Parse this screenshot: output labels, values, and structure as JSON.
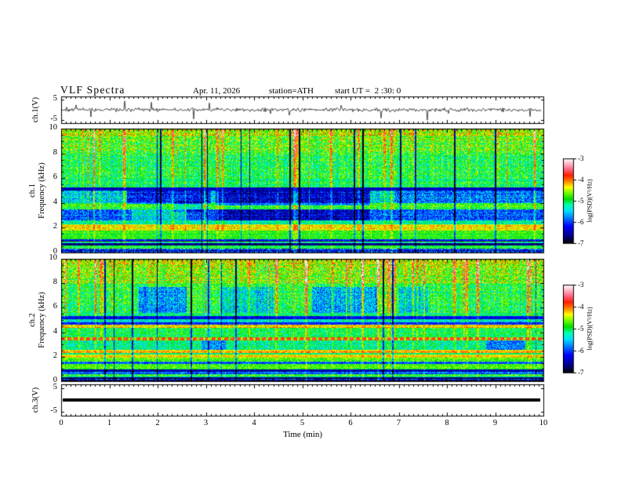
{
  "title": {
    "main": "VLF Spectra",
    "date": "Apr. 11, 2026",
    "station": "station=ATH",
    "start_ut": "start UT =  2 :30: 0"
  },
  "x_axis": {
    "label": "Time (min)",
    "min": 0,
    "max": 10,
    "tick_values": [
      0,
      1,
      2,
      3,
      4,
      5,
      6,
      7,
      8,
      9,
      10
    ],
    "tick_labels": [
      "0",
      "1",
      "2",
      "3",
      "4",
      "5",
      "6",
      "7",
      "8",
      "9",
      "10"
    ],
    "minor_step": 0.1
  },
  "colorbar": {
    "label": "log(PSD)(V²/Hz)",
    "min": -7,
    "max": -3,
    "tick_values": [
      -3,
      -4,
      -5,
      -6,
      -7
    ],
    "tick_labels": [
      "-3",
      "-4",
      "-5",
      "-6",
      "-7"
    ],
    "stops": [
      [
        0,
        "#000000"
      ],
      [
        0.08,
        "#000080"
      ],
      [
        0.2,
        "#0000ff"
      ],
      [
        0.3,
        "#0080ff"
      ],
      [
        0.38,
        "#00e0ff"
      ],
      [
        0.45,
        "#00ffb0"
      ],
      [
        0.52,
        "#00dd00"
      ],
      [
        0.6,
        "#80ff00"
      ],
      [
        0.66,
        "#ffff00"
      ],
      [
        0.73,
        "#ff8000"
      ],
      [
        0.8,
        "#ff2000"
      ],
      [
        0.87,
        "#ff6080"
      ],
      [
        0.93,
        "#ffb0c0"
      ],
      [
        1,
        "#ffffff"
      ]
    ]
  },
  "chart_data": [
    {
      "type": "line",
      "name": "ch1-waveform",
      "ylabel": "ch.1(V)",
      "ylim": [
        -6.5,
        6.5
      ],
      "ytick_values": [
        5,
        -5
      ],
      "ytick_labels": [
        "5",
        "-5"
      ],
      "line_color": "#000000",
      "noise_amp": 1.1,
      "spike_rate": 0.04,
      "spike_amp": [
        1.5,
        5.0
      ],
      "seed": 42
    },
    {
      "type": "heatmap",
      "name": "ch1-spectrogram",
      "ylabel_lines": [
        "ch.1",
        "Frequency (kHz)"
      ],
      "ylim": [
        0,
        10
      ],
      "ytick_values": [
        10,
        8,
        6,
        4,
        2,
        0
      ],
      "ytick_labels": [
        "10",
        "8",
        "6",
        "4",
        "2",
        "0"
      ],
      "value_units": "log(PSD)(V²/Hz)",
      "seed": 21,
      "stripe_rate": 0.06,
      "dark_rate": 0.025,
      "bands": [
        {
          "f": [
            9.4,
            10.01
          ],
          "level": -4.5,
          "noise": 0.55,
          "stripe": 1.0
        },
        {
          "f": [
            8.0,
            9.4
          ],
          "level": -4.75,
          "noise": 0.55,
          "stripe": 1.0
        },
        {
          "f": [
            6.0,
            8.0
          ],
          "level": -5.0,
          "noise": 0.5,
          "stripe": 0.9
        },
        {
          "f": [
            5.25,
            6.0
          ],
          "level": -5.05,
          "noise": 0.45,
          "stripe": 0.8
        },
        {
          "f": [
            5.0,
            5.25
          ],
          "level": -6.5,
          "noise": 0.35,
          "stripe": 0.25
        },
        {
          "f": [
            4.0,
            5.0
          ],
          "level": -5.45,
          "noise": 0.5,
          "stripe": 0.7
        },
        {
          "f": [
            3.45,
            4.0
          ],
          "level": -4.85,
          "noise": 0.4,
          "stripe": 0.6
        },
        {
          "f": [
            2.6,
            3.45
          ],
          "level": -6.0,
          "noise": 0.5,
          "stripe": 0.5
        },
        {
          "f": [
            2.25,
            2.6
          ],
          "level": -5.2,
          "noise": 0.4,
          "stripe": 0.45
        },
        {
          "f": [
            1.75,
            2.25
          ],
          "level": -4.35,
          "noise": 0.3,
          "stripe": 0.3
        },
        {
          "f": [
            1.05,
            1.75
          ],
          "level": -4.8,
          "noise": 0.3,
          "stripe": 0.3
        },
        {
          "f": [
            0.9,
            1.05
          ],
          "level": -6.2,
          "noise": 0.4,
          "stripe": 0.2,
          "rowNoise": 0.5
        },
        {
          "f": [
            0.75,
            0.9
          ],
          "level": -5.3,
          "noise": 0.4,
          "stripe": 0.2,
          "rowNoise": 0.5
        },
        {
          "f": [
            0.55,
            0.75
          ],
          "level": -6.5,
          "noise": 0.45,
          "stripe": 0.2,
          "rowNoise": 0.5
        },
        {
          "f": [
            0.3,
            0.55
          ],
          "level": -5.0,
          "noise": 0.4,
          "stripe": 0.25,
          "rowNoise": 0.4
        },
        {
          "f": [
            0,
            0.3
          ],
          "level": -6.3,
          "noise": 0.6,
          "stripe": 0.3,
          "rowNoise": 0.5
        }
      ],
      "features": [
        {
          "t": [
            1.35,
            3.1
          ],
          "f": [
            3.9,
            5.0
          ],
          "dlevel": -0.7
        },
        {
          "t": [
            3.2,
            6.4
          ],
          "f": [
            3.8,
            5.0
          ],
          "dlevel": -0.9
        },
        {
          "t": [
            3.2,
            6.4
          ],
          "f": [
            2.6,
            3.45
          ],
          "dlevel": -0.45
        },
        {
          "t": [
            1.45,
            2.6
          ],
          "f": [
            2.6,
            3.45
          ],
          "dlevel": 0.55
        },
        {
          "t": [
            2.3,
            2.9
          ],
          "f": [
            3.3,
            4.1
          ],
          "dlevel": -0.4
        },
        {
          "t": [
            6.9,
            10
          ],
          "f": [
            4.0,
            5.0
          ],
          "dlevel": -0.35
        }
      ]
    },
    {
      "type": "heatmap",
      "name": "ch2-spectrogram",
      "ylabel_lines": [
        "ch.2",
        "Frequency (kHz)"
      ],
      "ylim": [
        0,
        10
      ],
      "ytick_values": [
        10,
        8,
        6,
        4,
        2,
        0
      ],
      "ytick_labels": [
        "10",
        "8",
        "6",
        "4",
        "2",
        "0"
      ],
      "value_units": "log(PSD)(V²/Hz)",
      "seed": 77,
      "stripe_rate": 0.065,
      "dark_rate": 0.025,
      "bands": [
        {
          "f": [
            9.4,
            10.01
          ],
          "level": -4.5,
          "noise": 0.55,
          "stripe": 1.05
        },
        {
          "f": [
            8.0,
            9.4
          ],
          "level": -4.65,
          "noise": 0.55,
          "stripe": 1.05
        },
        {
          "f": [
            5.6,
            8.0
          ],
          "level": -4.95,
          "noise": 0.5,
          "stripe": 0.9
        },
        {
          "f": [
            5.3,
            5.6
          ],
          "level": -5.1,
          "noise": 0.4,
          "stripe": 0.6
        },
        {
          "f": [
            5.05,
            5.3
          ],
          "level": -6.3,
          "noise": 0.3,
          "stripe": 0.2
        },
        {
          "f": [
            4.8,
            5.05
          ],
          "level": -5.4,
          "noise": 0.4,
          "stripe": 0.4
        },
        {
          "f": [
            4.6,
            4.8
          ],
          "level": -6.1,
          "noise": 0.3,
          "stripe": 0.2
        },
        {
          "f": [
            4.35,
            4.6
          ],
          "level": -4.3,
          "noise": 0.3,
          "stripe": 0.2
        },
        {
          "f": [
            3.6,
            4.35
          ],
          "level": -5.0,
          "noise": 0.4,
          "stripe": 0.5
        },
        {
          "f": [
            3.35,
            3.6
          ],
          "level": -4.0,
          "noise": 0.25,
          "stripe": 0.1,
          "dash": true
        },
        {
          "f": [
            2.55,
            3.35
          ],
          "level": -5.15,
          "noise": 0.45,
          "stripe": 0.4
        },
        {
          "f": [
            2.3,
            2.55
          ],
          "level": -4.25,
          "noise": 0.3,
          "stripe": 0.15
        },
        {
          "f": [
            2.15,
            2.3
          ],
          "level": -5.0,
          "noise": 0.35,
          "stripe": 0.2
        },
        {
          "f": [
            1.95,
            2.15
          ],
          "level": -4.3,
          "noise": 0.3,
          "stripe": 0.15
        },
        {
          "f": [
            1.6,
            1.95
          ],
          "level": -4.7,
          "noise": 0.3,
          "stripe": 0.2
        },
        {
          "f": [
            1.4,
            1.6
          ],
          "level": -5.9,
          "noise": 0.35,
          "stripe": 0.2,
          "rowNoise": 0.4
        },
        {
          "f": [
            0.95,
            1.4
          ],
          "level": -4.8,
          "noise": 0.35,
          "stripe": 0.2
        },
        {
          "f": [
            0.6,
            0.95
          ],
          "level": -6.2,
          "noise": 0.45,
          "stripe": 0.2,
          "rowNoise": 0.5
        },
        {
          "f": [
            0.3,
            0.6
          ],
          "level": -5.0,
          "noise": 0.45,
          "stripe": 0.25,
          "rowNoise": 0.4
        },
        {
          "f": [
            0,
            0.3
          ],
          "level": -6.5,
          "noise": 0.6,
          "stripe": 0.3,
          "rowNoise": 0.5
        }
      ],
      "features": [
        {
          "t": [
            1.6,
            2.6
          ],
          "f": [
            5.6,
            7.7
          ],
          "dlevel": -0.75
        },
        {
          "t": [
            3.3,
            4.4
          ],
          "f": [
            5.6,
            7.7
          ],
          "dlevel": -0.45
        },
        {
          "t": [
            5.2,
            6.6
          ],
          "f": [
            5.6,
            7.7
          ],
          "dlevel": -0.65
        },
        {
          "t": [
            7.0,
            7.6
          ],
          "f": [
            5.6,
            7.7
          ],
          "dlevel": -0.5
        },
        {
          "t": [
            2.9,
            3.4
          ],
          "f": [
            2.55,
            3.35
          ],
          "dlevel": -0.55
        },
        {
          "t": [
            8.8,
            9.6
          ],
          "f": [
            2.55,
            3.35
          ],
          "dlevel": -0.65
        }
      ]
    },
    {
      "type": "line",
      "name": "ch3-waveform",
      "ylabel": "ch.3(V)",
      "ylim": [
        -6.5,
        6.5
      ],
      "ytick_values": [
        5,
        -5
      ],
      "ytick_labels": [
        "5",
        "-5"
      ],
      "constant_value": 0,
      "line_color": "#000000",
      "line_width": 4
    }
  ]
}
